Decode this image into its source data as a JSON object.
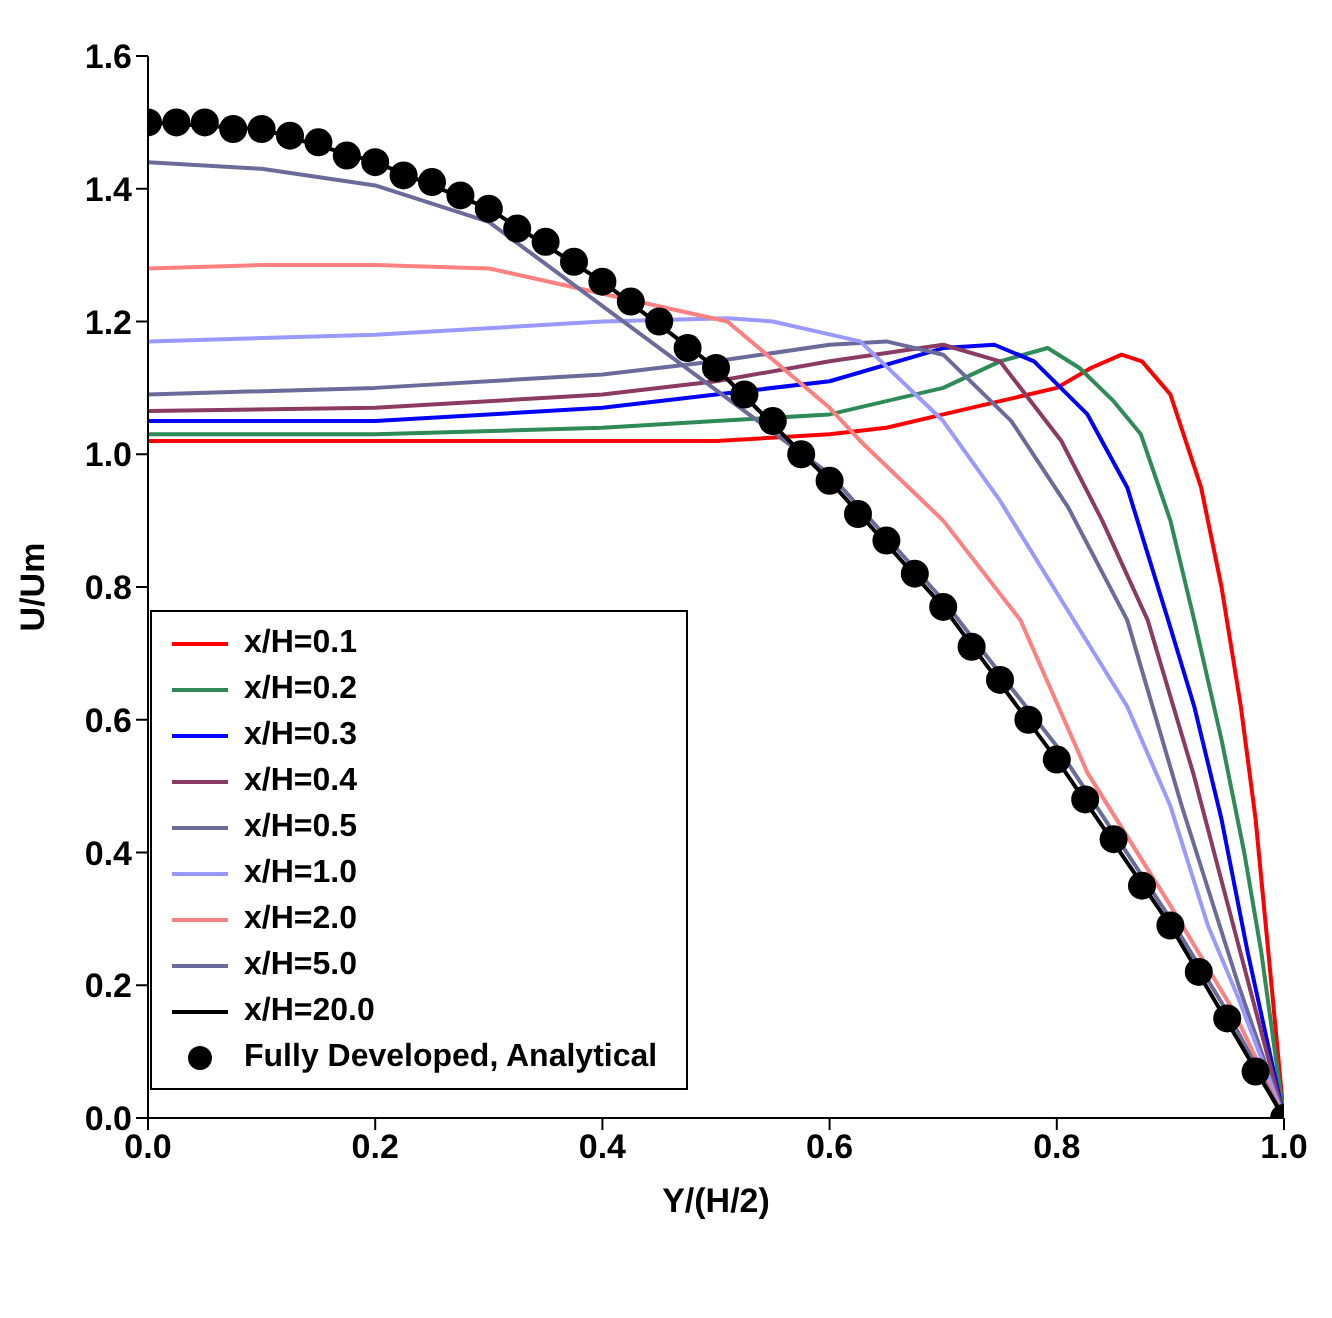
{
  "chart_data": {
    "type": "line",
    "xlabel": "Y/(H/2)",
    "ylabel": "U/Um",
    "xlim": [
      0,
      1
    ],
    "xticks": [
      {
        "value": 0,
        "label": "0.0"
      },
      0.2,
      0.4,
      0.6,
      0.8,
      {
        "value": 1,
        "label": "1.0"
      }
    ],
    "ylim": [
      0,
      1.6
    ],
    "yticks": [
      {
        "value": 0,
        "label": "0.0"
      },
      0.2,
      0.4,
      0.6,
      0.8,
      {
        "value": 1,
        "label": "1.0"
      },
      1.2,
      1.4,
      1.6
    ],
    "grid": false,
    "legend": "bottom left",
    "marker": "none",
    "line_style": "solid",
    "series": [
      {
        "name": "x/H=0.1",
        "color": "#ff0000",
        "x": [
          0,
          0.2,
          0.4,
          0.5,
          0.6,
          0.65,
          0.7,
          0.75,
          0.8,
          0.83,
          0.857,
          0.875,
          0.9,
          0.927,
          0.945,
          0.962,
          0.975,
          0.989,
          1
        ],
        "values": [
          1.02,
          1.02,
          1.02,
          1.02,
          1.03,
          1.04,
          1.06,
          1.08,
          1.1,
          1.13,
          1.15,
          1.14,
          1.09,
          0.95,
          0.8,
          0.62,
          0.45,
          0.2,
          0
        ]
      },
      {
        "name": "x/H=0.2",
        "color": "#2e8b57",
        "x": [
          0,
          0.2,
          0.4,
          0.5,
          0.6,
          0.7,
          0.75,
          0.792,
          0.82,
          0.85,
          0.874,
          0.9,
          0.921,
          0.945,
          0.965,
          0.98,
          1
        ],
        "values": [
          1.03,
          1.03,
          1.04,
          1.05,
          1.06,
          1.1,
          1.14,
          1.16,
          1.13,
          1.08,
          1.03,
          0.9,
          0.75,
          0.57,
          0.4,
          0.25,
          0
        ]
      },
      {
        "name": "x/H=0.3",
        "color": "#0000ff",
        "x": [
          0,
          0.2,
          0.4,
          0.5,
          0.6,
          0.7,
          0.745,
          0.78,
          0.827,
          0.862,
          0.898,
          0.921,
          0.945,
          0.968,
          1
        ],
        "values": [
          1.05,
          1.05,
          1.07,
          1.09,
          1.11,
          1.16,
          1.165,
          1.14,
          1.06,
          0.95,
          0.75,
          0.62,
          0.45,
          0.25,
          0
        ]
      },
      {
        "name": "x/H=0.4",
        "color": "#8b3a62",
        "x": [
          0,
          0.2,
          0.4,
          0.5,
          0.6,
          0.7,
          0.75,
          0.804,
          0.84,
          0.88,
          0.92,
          0.96,
          1
        ],
        "values": [
          1.065,
          1.07,
          1.09,
          1.11,
          1.14,
          1.165,
          1.14,
          1.02,
          0.9,
          0.75,
          0.52,
          0.26,
          0
        ]
      },
      {
        "name": "x/H=0.5",
        "color": "#6b6b9b",
        "x": [
          0,
          0.2,
          0.4,
          0.5,
          0.6,
          0.65,
          0.7,
          0.76,
          0.81,
          0.862,
          0.91,
          0.96,
          1
        ],
        "values": [
          1.09,
          1.1,
          1.12,
          1.14,
          1.165,
          1.17,
          1.15,
          1.05,
          0.92,
          0.75,
          0.47,
          0.2,
          0
        ]
      },
      {
        "name": "x/H=1.0",
        "color": "#9999ff",
        "x": [
          0,
          0.2,
          0.4,
          0.51,
          0.55,
          0.627,
          0.7,
          0.75,
          0.815,
          0.862,
          0.9,
          0.933,
          0.96,
          1
        ],
        "values": [
          1.17,
          1.18,
          1.2,
          1.205,
          1.2,
          1.17,
          1.05,
          0.93,
          0.75,
          0.62,
          0.47,
          0.29,
          0.18,
          0
        ]
      },
      {
        "name": "x/H=2.0",
        "color": "#ff8080",
        "x": [
          0,
          0.1,
          0.2,
          0.3,
          0.51,
          0.6,
          0.627,
          0.7,
          0.768,
          0.827,
          0.9,
          0.956,
          1
        ],
        "values": [
          1.28,
          1.285,
          1.285,
          1.28,
          1.2,
          1.07,
          1.02,
          0.9,
          0.75,
          0.52,
          0.32,
          0.16,
          0
        ]
      },
      {
        "name": "x/H=5.0",
        "color": "#6b6b9b",
        "x": [
          0,
          0.1,
          0.2,
          0.3,
          0.6,
          0.7,
          0.8,
          0.9,
          0.95,
          1
        ],
        "values": [
          1.44,
          1.43,
          1.405,
          1.35,
          0.97,
          0.78,
          0.56,
          0.3,
          0.16,
          0
        ]
      },
      {
        "name": "x/H=20.0",
        "color": "#000000",
        "x": [
          0,
          0.1,
          0.2,
          0.3,
          0.4,
          0.5,
          0.6,
          0.7,
          0.8,
          0.9,
          1
        ],
        "values": [
          1.5,
          1.49,
          1.44,
          1.37,
          1.26,
          1.13,
          0.96,
          0.77,
          0.54,
          0.29,
          0
        ]
      },
      {
        "name": "Fully Developed, Analytical",
        "type": "scatter",
        "marker": "circle",
        "color": "#000000",
        "x": [
          0,
          0.025,
          0.05,
          0.075,
          0.1,
          0.125,
          0.15,
          0.175,
          0.2,
          0.225,
          0.25,
          0.275,
          0.3,
          0.325,
          0.35,
          0.375,
          0.4,
          0.425,
          0.45,
          0.475,
          0.5,
          0.525,
          0.55,
          0.575,
          0.6,
          0.625,
          0.65,
          0.675,
          0.7,
          0.725,
          0.75,
          0.775,
          0.8,
          0.825,
          0.85,
          0.875,
          0.9,
          0.925,
          0.95,
          0.975,
          1
        ],
        "values": [
          1.5,
          1.5,
          1.5,
          1.49,
          1.49,
          1.48,
          1.47,
          1.45,
          1.44,
          1.42,
          1.41,
          1.39,
          1.37,
          1.34,
          1.32,
          1.29,
          1.26,
          1.23,
          1.2,
          1.16,
          1.13,
          1.09,
          1.05,
          1,
          0.96,
          0.91,
          0.87,
          0.82,
          0.77,
          0.71,
          0.66,
          0.6,
          0.54,
          0.48,
          0.42,
          0.35,
          0.29,
          0.22,
          0.15,
          0.07,
          0
        ]
      }
    ]
  }
}
